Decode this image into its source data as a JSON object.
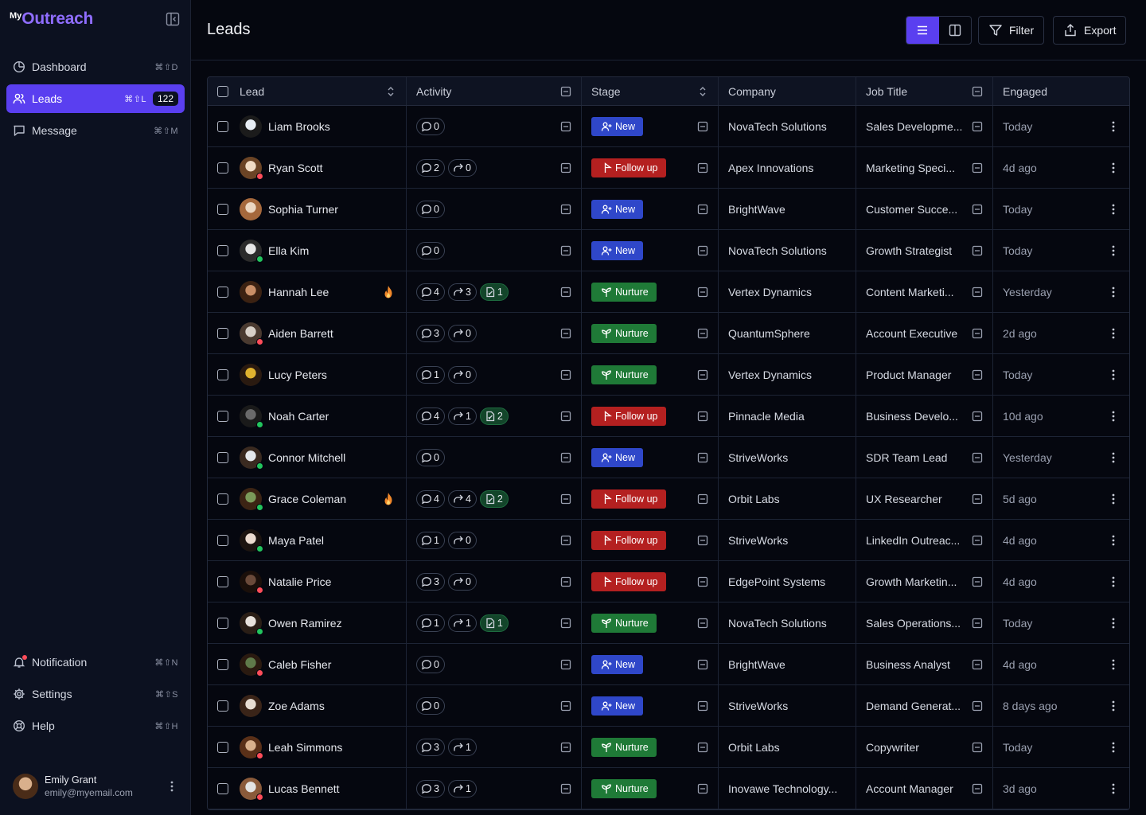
{
  "logo": {
    "prefix": "My",
    "name": "Outreach"
  },
  "nav": {
    "items": [
      {
        "label": "Dashboard",
        "shortcut": "⌘⇧D",
        "icon": "dashboard-icon"
      },
      {
        "label": "Leads",
        "shortcut": "⌘⇧L",
        "badge": "122",
        "icon": "users-icon",
        "active": true
      },
      {
        "label": "Message",
        "shortcut": "⌘⇧M",
        "icon": "message-icon"
      }
    ],
    "bottom": [
      {
        "label": "Notification",
        "shortcut": "⌘⇧N",
        "icon": "bell-icon"
      },
      {
        "label": "Settings",
        "shortcut": "⌘⇧S",
        "icon": "gear-icon"
      },
      {
        "label": "Help",
        "shortcut": "⌘⇧H",
        "icon": "help-icon"
      }
    ]
  },
  "user": {
    "name": "Emily Grant",
    "email": "emily@myemail.com"
  },
  "header": {
    "title": "Leads",
    "filter_label": "Filter",
    "export_label": "Export"
  },
  "colors": {
    "accent": "#5a3ff0",
    "new": "#2f47c9",
    "follow_up": "#b42020",
    "nurture": "#1f7a37",
    "online": "#22c55e",
    "busy": "#ff4d5a"
  },
  "table": {
    "columns": [
      "Lead",
      "Activity",
      "Stage",
      "Company",
      "Job Title",
      "Engaged"
    ],
    "rows": [
      {
        "name": "Liam Brooks",
        "status": "",
        "hot": false,
        "msg": "0",
        "fwd": null,
        "doc": null,
        "stage": "New",
        "company": "NovaTech Solutions",
        "job": "Sales Developme...",
        "engaged": "Today",
        "av": [
          "#e8eef5",
          "#1b1b1b"
        ]
      },
      {
        "name": "Ryan Scott",
        "status": "busy",
        "hot": false,
        "msg": "2",
        "fwd": "0",
        "doc": null,
        "stage": "Follow up",
        "company": "Apex Innovations",
        "job": "Marketing Speci...",
        "engaged": "4d ago",
        "av": [
          "#f1dcc5",
          "#6b4425"
        ]
      },
      {
        "name": "Sophia Turner",
        "status": "",
        "hot": false,
        "msg": "0",
        "fwd": null,
        "doc": null,
        "stage": "New",
        "company": "BrightWave",
        "job": "Customer Succe...",
        "engaged": "Today",
        "av": [
          "#ecd7c2",
          "#a5683c"
        ]
      },
      {
        "name": "Ella Kim",
        "status": "online",
        "hot": false,
        "msg": "0",
        "fwd": null,
        "doc": null,
        "stage": "New",
        "company": "NovaTech Solutions",
        "job": "Growth Strategist",
        "engaged": "Today",
        "av": [
          "#e6e6e6",
          "#2b2b2b"
        ]
      },
      {
        "name": "Hannah Lee",
        "status": "",
        "hot": true,
        "msg": "4",
        "fwd": "3",
        "doc": "1",
        "stage": "Nurture",
        "company": "Vertex Dynamics",
        "job": "Content Marketi...",
        "engaged": "Yesterday",
        "av": [
          "#c98f67",
          "#3c2212"
        ]
      },
      {
        "name": "Aiden Barrett",
        "status": "busy",
        "hot": false,
        "msg": "3",
        "fwd": "0",
        "doc": null,
        "stage": "Nurture",
        "company": "QuantumSphere",
        "job": "Account Executive",
        "engaged": "2d ago",
        "av": [
          "#d8d0c8",
          "#4a3a30"
        ]
      },
      {
        "name": "Lucy Peters",
        "status": "",
        "hot": false,
        "msg": "1",
        "fwd": "0",
        "doc": null,
        "stage": "Nurture",
        "company": "Vertex Dynamics",
        "job": "Product Manager",
        "engaged": "Today",
        "av": [
          "#e0b22f",
          "#2a1a10"
        ]
      },
      {
        "name": "Noah Carter",
        "status": "online",
        "hot": false,
        "msg": "4",
        "fwd": "1",
        "doc": "2",
        "stage": "Follow up",
        "company": "Pinnacle Media",
        "job": "Business Develo...",
        "engaged": "10d ago",
        "av": [
          "#6a6a6a",
          "#1a1a1a"
        ]
      },
      {
        "name": "Connor Mitchell",
        "status": "online",
        "hot": false,
        "msg": "0",
        "fwd": null,
        "doc": null,
        "stage": "New",
        "company": "StriveWorks",
        "job": "SDR Team Lead",
        "engaged": "Yesterday",
        "av": [
          "#e5e8ec",
          "#3a2a20"
        ]
      },
      {
        "name": "Grace Coleman",
        "status": "online",
        "hot": true,
        "msg": "4",
        "fwd": "4",
        "doc": "2",
        "stage": "Follow up",
        "company": "Orbit Labs",
        "job": "UX Researcher",
        "engaged": "5d ago",
        "av": [
          "#7b9a5a",
          "#3c2414"
        ]
      },
      {
        "name": "Maya Patel",
        "status": "online",
        "hot": false,
        "msg": "1",
        "fwd": "0",
        "doc": null,
        "stage": "Follow up",
        "company": "StriveWorks",
        "job": "LinkedIn Outreac...",
        "engaged": "4d ago",
        "av": [
          "#ecdcd0",
          "#1c1410"
        ]
      },
      {
        "name": "Natalie Price",
        "status": "busy",
        "hot": false,
        "msg": "3",
        "fwd": "0",
        "doc": null,
        "stage": "Follow up",
        "company": "EdgePoint Systems",
        "job": "Growth Marketin...",
        "engaged": "4d ago",
        "av": [
          "#6a4a3a",
          "#1a0f0a"
        ]
      },
      {
        "name": "Owen Ramirez",
        "status": "online",
        "hot": false,
        "msg": "1",
        "fwd": "1",
        "doc": "1",
        "stage": "Nurture",
        "company": "NovaTech Solutions",
        "job": "Sales Operations...",
        "engaged": "Today",
        "av": [
          "#e8e2dc",
          "#2a1e16"
        ]
      },
      {
        "name": "Caleb Fisher",
        "status": "busy",
        "hot": false,
        "msg": "0",
        "fwd": null,
        "doc": null,
        "stage": "New",
        "company": "BrightWave",
        "job": "Business Analyst",
        "engaged": "4d ago",
        "av": [
          "#5f7a4a",
          "#2a1a10"
        ]
      },
      {
        "name": "Zoe Adams",
        "status": "",
        "hot": false,
        "msg": "0",
        "fwd": null,
        "doc": null,
        "stage": "New",
        "company": "StriveWorks",
        "job": "Demand Generat...",
        "engaged": "8 days ago",
        "av": [
          "#e7ddd3",
          "#3a2418"
        ]
      },
      {
        "name": "Leah Simmons",
        "status": "busy",
        "hot": false,
        "msg": "3",
        "fwd": "1",
        "doc": null,
        "stage": "Nurture",
        "company": "Orbit Labs",
        "job": "Copywriter",
        "engaged": "Today",
        "av": [
          "#d9b08c",
          "#5a3018"
        ]
      },
      {
        "name": "Lucas Bennett",
        "status": "busy",
        "hot": false,
        "msg": "3",
        "fwd": "1",
        "doc": null,
        "stage": "Nurture",
        "company": "Inovawe Technology...",
        "job": "Account Manager",
        "engaged": "3d ago",
        "av": [
          "#e3e3e3",
          "#8a5a3a"
        ]
      }
    ]
  }
}
